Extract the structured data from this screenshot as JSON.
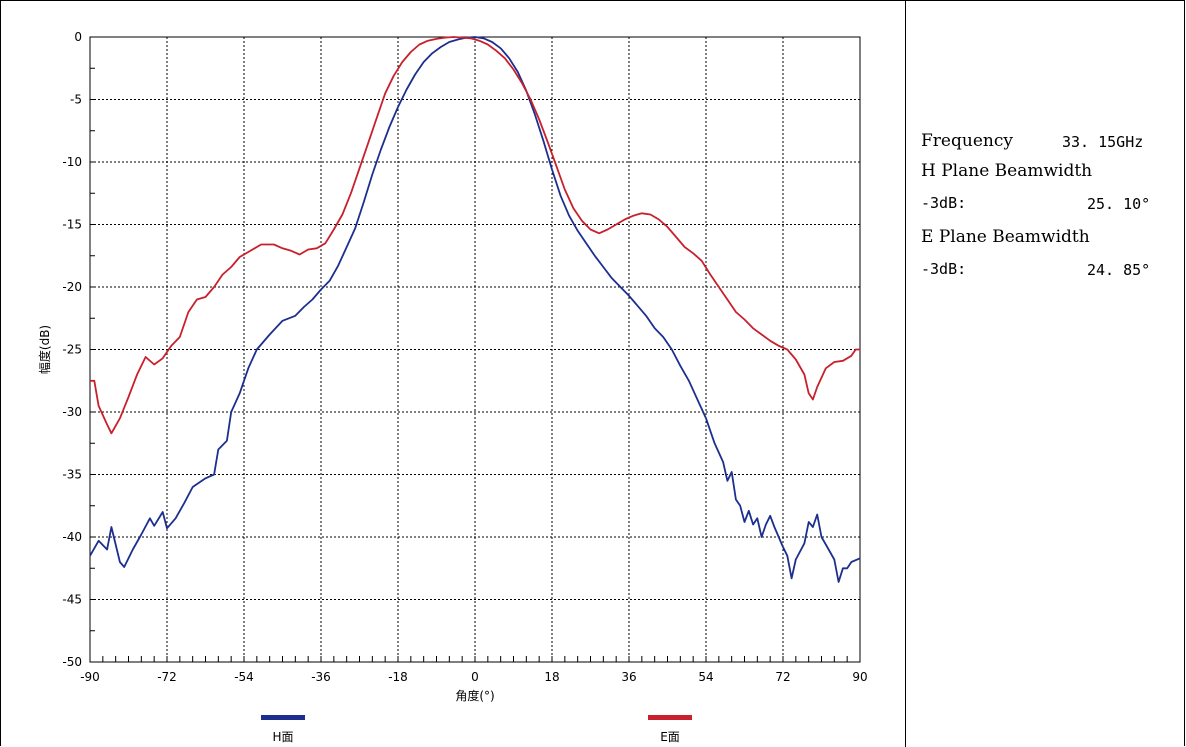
{
  "info_panel": {
    "frequency_label": "Frequency",
    "frequency_value": "33. 15GHz",
    "h_plane_label": "H Plane Beamwidth",
    "h_3db_label": "-3dB:",
    "h_3db_value": "25. 10°",
    "e_plane_label": "E Plane Beamwidth",
    "e_3db_label": "-3dB:",
    "e_3db_value": "24. 85°"
  },
  "chart_data": {
    "type": "line",
    "xlabel": "角度(°)",
    "ylabel": "幅度(dB)",
    "xlim": [
      -90,
      90
    ],
    "ylim": [
      -50,
      0
    ],
    "xticks": [
      -90,
      -72,
      -54,
      -36,
      -18,
      0,
      18,
      36,
      54,
      72,
      90
    ],
    "yticks": [
      0,
      -5,
      -10,
      -15,
      -20,
      -25,
      -30,
      -35,
      -40,
      -45,
      -50
    ],
    "grid": true,
    "legend_position": "bottom",
    "series": [
      {
        "name": "H面",
        "color": "#1c2f8f",
        "points": [
          [
            -90,
            -41.5
          ],
          [
            -88,
            -40.3
          ],
          [
            -86,
            -41.0
          ],
          [
            -85,
            -39.2
          ],
          [
            -83,
            -42.0
          ],
          [
            -82,
            -42.4
          ],
          [
            -80,
            -41.0
          ],
          [
            -78,
            -39.8
          ],
          [
            -76,
            -38.5
          ],
          [
            -75,
            -39.1
          ],
          [
            -73,
            -38.0
          ],
          [
            -72,
            -39.3
          ],
          [
            -70,
            -38.5
          ],
          [
            -68,
            -37.3
          ],
          [
            -66,
            -36.0
          ],
          [
            -63,
            -35.3
          ],
          [
            -61,
            -35.0
          ],
          [
            -60,
            -33.0
          ],
          [
            -58,
            -32.3
          ],
          [
            -57,
            -30.0
          ],
          [
            -55,
            -28.5
          ],
          [
            -53,
            -26.5
          ],
          [
            -51,
            -25.0
          ],
          [
            -48,
            -23.8
          ],
          [
            -45,
            -22.7
          ],
          [
            -42,
            -22.3
          ],
          [
            -40,
            -21.6
          ],
          [
            -38,
            -21.0
          ],
          [
            -36,
            -20.2
          ],
          [
            -34,
            -19.5
          ],
          [
            -32,
            -18.3
          ],
          [
            -30,
            -16.8
          ],
          [
            -28,
            -15.3
          ],
          [
            -26,
            -13.2
          ],
          [
            -24,
            -11.0
          ],
          [
            -22,
            -9.0
          ],
          [
            -20,
            -7.2
          ],
          [
            -18,
            -5.6
          ],
          [
            -16,
            -4.2
          ],
          [
            -14,
            -3.0
          ],
          [
            -12,
            -2.0
          ],
          [
            -10,
            -1.3
          ],
          [
            -8,
            -0.8
          ],
          [
            -6,
            -0.4
          ],
          [
            -4,
            -0.2
          ],
          [
            -2,
            -0.05
          ],
          [
            0,
            0.0
          ],
          [
            2,
            -0.1
          ],
          [
            4,
            -0.4
          ],
          [
            6,
            -0.9
          ],
          [
            8,
            -1.7
          ],
          [
            10,
            -2.8
          ],
          [
            12,
            -4.3
          ],
          [
            14,
            -6.2
          ],
          [
            16,
            -8.3
          ],
          [
            18,
            -10.6
          ],
          [
            20,
            -12.7
          ],
          [
            22,
            -14.3
          ],
          [
            24,
            -15.5
          ],
          [
            26,
            -16.5
          ],
          [
            28,
            -17.5
          ],
          [
            30,
            -18.4
          ],
          [
            32,
            -19.3
          ],
          [
            34,
            -20.0
          ],
          [
            36,
            -20.7
          ],
          [
            38,
            -21.5
          ],
          [
            40,
            -22.3
          ],
          [
            42,
            -23.3
          ],
          [
            44,
            -24.0
          ],
          [
            46,
            -25.0
          ],
          [
            48,
            -26.3
          ],
          [
            50,
            -27.5
          ],
          [
            52,
            -29.0
          ],
          [
            54,
            -30.5
          ],
          [
            56,
            -32.5
          ],
          [
            58,
            -34.0
          ],
          [
            59,
            -35.5
          ],
          [
            60,
            -34.8
          ],
          [
            61,
            -37.0
          ],
          [
            62,
            -37.5
          ],
          [
            63,
            -38.8
          ],
          [
            64,
            -37.9
          ],
          [
            65,
            -39.0
          ],
          [
            66,
            -38.5
          ],
          [
            67,
            -40.0
          ],
          [
            68,
            -39.0
          ],
          [
            69,
            -38.3
          ],
          [
            70,
            -39.2
          ],
          [
            72,
            -40.8
          ],
          [
            73,
            -41.5
          ],
          [
            74,
            -43.3
          ],
          [
            75,
            -41.8
          ],
          [
            77,
            -40.5
          ],
          [
            78,
            -38.8
          ],
          [
            79,
            -39.2
          ],
          [
            80,
            -38.2
          ],
          [
            81,
            -40.0
          ],
          [
            82,
            -40.6
          ],
          [
            84,
            -41.8
          ],
          [
            85,
            -43.6
          ],
          [
            86,
            -42.5
          ],
          [
            87,
            -42.5
          ],
          [
            88,
            -42.0
          ],
          [
            90,
            -41.7
          ]
        ]
      },
      {
        "name": "E面",
        "color": "#c8202c",
        "points": [
          [
            -90,
            -27.5
          ],
          [
            -89,
            -27.5
          ],
          [
            -88,
            -29.5
          ],
          [
            -86,
            -31.0
          ],
          [
            -85,
            -31.7
          ],
          [
            -83,
            -30.5
          ],
          [
            -81,
            -28.8
          ],
          [
            -79,
            -27.0
          ],
          [
            -77,
            -25.6
          ],
          [
            -75,
            -26.2
          ],
          [
            -73,
            -25.7
          ],
          [
            -71,
            -24.7
          ],
          [
            -69,
            -24.0
          ],
          [
            -67,
            -22.0
          ],
          [
            -65,
            -21.0
          ],
          [
            -63,
            -20.8
          ],
          [
            -61,
            -20.0
          ],
          [
            -59,
            -19.0
          ],
          [
            -57,
            -18.4
          ],
          [
            -55,
            -17.6
          ],
          [
            -53,
            -17.2
          ],
          [
            -50,
            -16.6
          ],
          [
            -47,
            -16.6
          ],
          [
            -45,
            -16.9
          ],
          [
            -43,
            -17.1
          ],
          [
            -41,
            -17.4
          ],
          [
            -39,
            -17.0
          ],
          [
            -37,
            -16.9
          ],
          [
            -35,
            -16.5
          ],
          [
            -33,
            -15.4
          ],
          [
            -31,
            -14.2
          ],
          [
            -29,
            -12.5
          ],
          [
            -27,
            -10.5
          ],
          [
            -25,
            -8.5
          ],
          [
            -23,
            -6.5
          ],
          [
            -21,
            -4.5
          ],
          [
            -19,
            -3.1
          ],
          [
            -17,
            -2.0
          ],
          [
            -15,
            -1.2
          ],
          [
            -13,
            -0.6
          ],
          [
            -11,
            -0.3
          ],
          [
            -9,
            -0.15
          ],
          [
            -7,
            -0.05
          ],
          [
            -5,
            0.0
          ],
          [
            -3,
            -0.05
          ],
          [
            -1,
            -0.1
          ],
          [
            1,
            -0.3
          ],
          [
            3,
            -0.6
          ],
          [
            5,
            -1.1
          ],
          [
            7,
            -1.7
          ],
          [
            9,
            -2.6
          ],
          [
            11,
            -3.7
          ],
          [
            13,
            -5.0
          ],
          [
            15,
            -6.6
          ],
          [
            17,
            -8.4
          ],
          [
            19,
            -10.3
          ],
          [
            21,
            -12.2
          ],
          [
            23,
            -13.7
          ],
          [
            25,
            -14.7
          ],
          [
            27,
            -15.4
          ],
          [
            29,
            -15.7
          ],
          [
            31,
            -15.4
          ],
          [
            33,
            -15.0
          ],
          [
            35,
            -14.6
          ],
          [
            37,
            -14.3
          ],
          [
            39,
            -14.1
          ],
          [
            41,
            -14.2
          ],
          [
            43,
            -14.6
          ],
          [
            45,
            -15.2
          ],
          [
            47,
            -16.0
          ],
          [
            49,
            -16.8
          ],
          [
            51,
            -17.3
          ],
          [
            53,
            -17.9
          ],
          [
            55,
            -19.0
          ],
          [
            57,
            -20.0
          ],
          [
            59,
            -21.0
          ],
          [
            61,
            -22.0
          ],
          [
            63,
            -22.6
          ],
          [
            65,
            -23.3
          ],
          [
            67,
            -23.8
          ],
          [
            69,
            -24.3
          ],
          [
            71,
            -24.7
          ],
          [
            73,
            -25.0
          ],
          [
            75,
            -25.8
          ],
          [
            77,
            -27.0
          ],
          [
            78,
            -28.5
          ],
          [
            79,
            -29.0
          ],
          [
            80,
            -28.0
          ],
          [
            82,
            -26.5
          ],
          [
            84,
            -26.0
          ],
          [
            86,
            -25.9
          ],
          [
            88,
            -25.5
          ],
          [
            89,
            -25.0
          ],
          [
            90,
            -25.0
          ]
        ]
      }
    ]
  }
}
